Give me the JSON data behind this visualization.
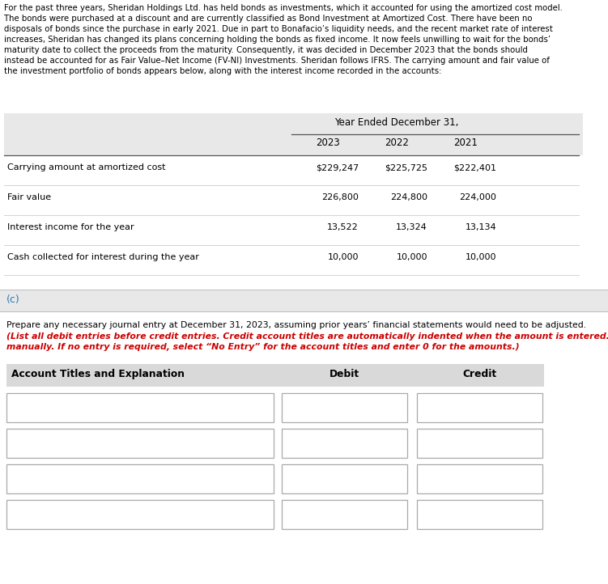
{
  "intro_lines": [
    "For the past three years, Sheridan Holdings Ltd. has held bonds as investments, which it accounted for using the amortized cost model.",
    "The bonds were purchased at a discount and are currently classified as Bond Investment at Amortized Cost. There have been no",
    "disposals of bonds since the purchase in early 2021. Due in part to Bonafacio’s liquidity needs, and the recent market rate of interest",
    "increases, Sheridan has changed its plans concerning holding the bonds as fixed income. It now feels unwilling to wait for the bonds’",
    "maturity date to collect the proceeds from the maturity. Consequently, it was decided in December 2023 that the bonds should",
    "instead be accounted for as Fair Value–Net Income (FV-NI) Investments. Sheridan follows IFRS. The carrying amount and fair value of",
    "the investment portfolio of bonds appears below, along with the interest income recorded in the accounts:"
  ],
  "table_header": "Year Ended December 31,",
  "years": [
    "2023",
    "2022",
    "2021"
  ],
  "rows": [
    {
      "label": "Carrying amount at amortized cost",
      "values": [
        "$229,247",
        "$225,725",
        "$222,401"
      ]
    },
    {
      "label": "Fair value",
      "values": [
        "226,800",
        "224,800",
        "224,000"
      ]
    },
    {
      "label": "Interest income for the year",
      "values": [
        "13,522",
        "13,324",
        "13,134"
      ]
    },
    {
      "label": "Cash collected for interest during the year",
      "values": [
        "10,000",
        "10,000",
        "10,000"
      ]
    }
  ],
  "section_c_label": "(c)",
  "section_c_color": "#2a7ab5",
  "question_text_normal": "Prepare any necessary journal entry at December 31, 2023, assuming prior years’ financial statements would need to be adjusted.",
  "question_text_red_lines": [
    "(List all debit entries before credit entries. Credit account titles are automatically indented when the amount is entered. Do not indent",
    "manually. If no entry is required, select “No Entry” for the account titles and enter 0 for the amounts.)"
  ],
  "journal_header": [
    "Account Titles and Explanation",
    "Debit",
    "Credit"
  ],
  "num_journal_rows": 4,
  "bg_color": "#ffffff",
  "table_bg": "#e8e8e8",
  "section_c_bg": "#e8e8e8",
  "journal_header_bg": "#d9d9d9",
  "input_box_border": "#aaaaaa",
  "text_color": "#000000",
  "red_color": "#cc0000",
  "line_color": "#888888",
  "separator_color": "#cccccc"
}
